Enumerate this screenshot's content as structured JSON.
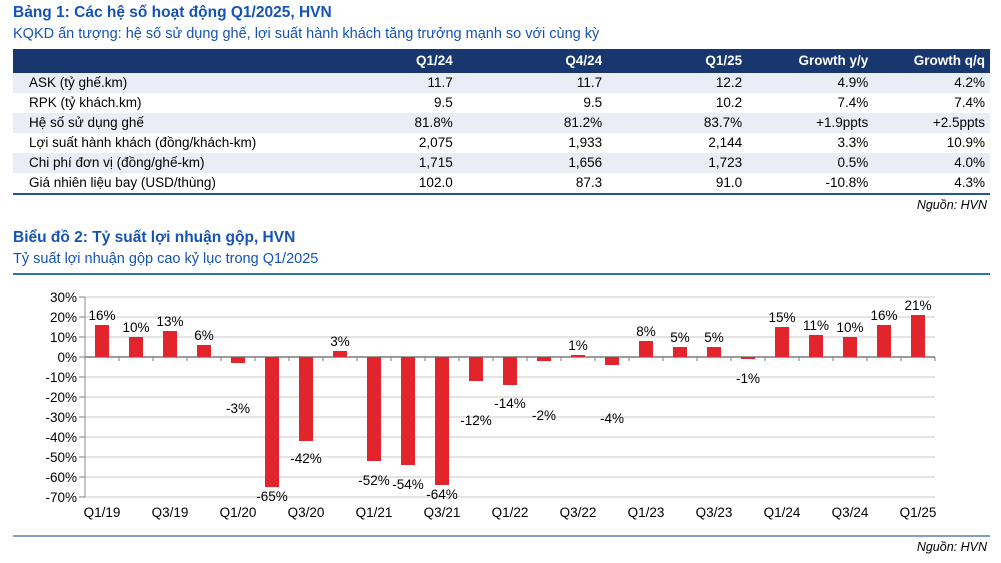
{
  "colors": {
    "accent_blue": "#1553B5",
    "header_navy": "#17376E",
    "row_alt_bg": "#E9EDF5",
    "bar_red": "#E2242C",
    "table_border_blue": "#24549C",
    "subtitle_rule_blue": "#2E74B5",
    "bottom_rule_blue_gray": "#7F9DC1"
  },
  "section1": {
    "title": "Bảng 1: Các hệ số hoạt động Q1/2025, HVN",
    "subtitle": "KQKD ấn tượng: hệ số sử dụng ghế, lợi suất hành khách tăng trưởng mạnh so với cùng kỳ",
    "source": "Nguồn: HVN"
  },
  "section2": {
    "title": "Biểu đồ 2: Tỷ suất lợi nhuận gộp, HVN",
    "subtitle": "Tỷ suất lợi nhuận gộp cao kỷ lục trong Q1/2025",
    "source": "Nguồn: HVN"
  },
  "chart_data": [
    {
      "type": "table",
      "title": "Bảng 1: Các hệ số hoạt động Q1/2025, HVN",
      "columns": [
        "",
        "Q1/24",
        "Q4/24",
        "Q1/25",
        "Growth y/y",
        "Growth q/q"
      ],
      "rows": [
        {
          "label": "ASK (tỷ ghế.km)",
          "values": [
            "11.7",
            "11.7",
            "12.2",
            "4.9%",
            "4.2%"
          ]
        },
        {
          "label": "RPK (tỷ khách.km)",
          "values": [
            "9.5",
            "9.5",
            "10.2",
            "7.4%",
            "7.4%"
          ]
        },
        {
          "label": "Hệ số sử dụng ghế",
          "values": [
            "81.8%",
            "81.2%",
            "83.7%",
            "+1.9ppts",
            "+2.5ppts"
          ]
        },
        {
          "label": "Lợi suất hành khách (đồng/khách-km)",
          "values": [
            "2,075",
            "1,933",
            "2,144",
            "3.3%",
            "10.9%"
          ]
        },
        {
          "label": "Chi phí đơn vị (đồng/ghế-km)",
          "values": [
            "1,715",
            "1,656",
            "1,723",
            "0.5%",
            "4.0%"
          ]
        },
        {
          "label": "Giá nhiên liệu bay (USD/thùng)",
          "values": [
            "102.0",
            "87.3",
            "91.0",
            "-10.8%",
            "4.3%"
          ]
        }
      ]
    },
    {
      "type": "bar",
      "title": "Biểu đồ 2: Tỷ suất lợi nhuận gộp, HVN",
      "categories": [
        "Q1/19",
        "Q2/19",
        "Q3/19",
        "Q4/19",
        "Q1/20",
        "Q2/20",
        "Q3/20",
        "Q4/20",
        "Q1/21",
        "Q2/21",
        "Q3/21",
        "Q4/21",
        "Q1/22",
        "Q2/22",
        "Q3/22",
        "Q4/22",
        "Q1/23",
        "Q2/23",
        "Q3/23",
        "Q4/23",
        "Q1/24",
        "Q2/24",
        "Q3/24",
        "Q4/24",
        "Q1/25"
      ],
      "values": [
        16,
        10,
        13,
        6,
        -3,
        -65,
        -42,
        3,
        -52,
        -54,
        -64,
        -12,
        -14,
        -2,
        1,
        -4,
        8,
        5,
        5,
        -1,
        15,
        11,
        10,
        16,
        21
      ],
      "data_labels": [
        "16%",
        "10%",
        "13%",
        "6%",
        "-3%",
        "-65%",
        "-42%",
        "3%",
        "-52%",
        "-54%",
        "-64%",
        "-12%",
        "-14%",
        "-2%",
        "1%",
        "-4%",
        "8%",
        "5%",
        "5%",
        "-1%",
        "15%",
        "11%",
        "10%",
        "16%",
        "21%"
      ],
      "x_tick_labels": [
        "Q1/19",
        "Q3/19",
        "Q1/20",
        "Q3/20",
        "Q1/21",
        "Q3/21",
        "Q1/22",
        "Q3/22",
        "Q1/23",
        "Q3/23",
        "Q1/24",
        "Q3/24",
        "Q1/25"
      ],
      "y_tick_labels": [
        "30%",
        "20%",
        "10%",
        "0%",
        "-10%",
        "-20%",
        "-30%",
        "-40%",
        "-50%",
        "-60%",
        "-70%"
      ],
      "y_tick_values": [
        30,
        20,
        10,
        0,
        -10,
        -20,
        -30,
        -40,
        -50,
        -60,
        -70
      ],
      "ylim": [
        -70,
        30
      ],
      "xlabel": "",
      "ylabel": "",
      "grid": true,
      "legend": "none",
      "bar_color": "#E2242C"
    }
  ]
}
